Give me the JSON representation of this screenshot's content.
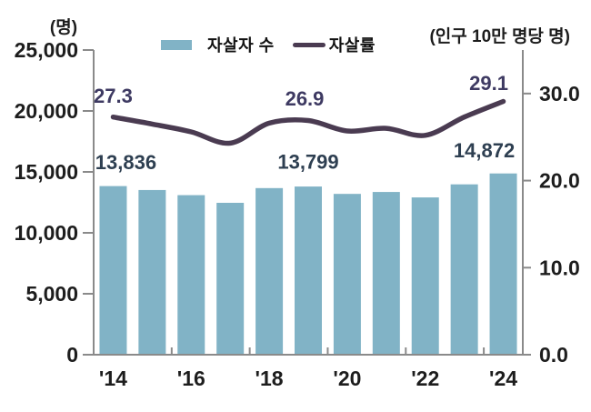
{
  "chart_data": {
    "type": "combo",
    "title": "",
    "categories": [
      "'14",
      "'15",
      "'16",
      "'17",
      "'18",
      "'19",
      "'20",
      "'21",
      "'22",
      "'23",
      "'24"
    ],
    "x_axis": {
      "tick_labels_shown": [
        "'14",
        "'16",
        "'18",
        "'20",
        "'22",
        "'24"
      ],
      "shown_at_indices": [
        0,
        2,
        4,
        6,
        8,
        10
      ]
    },
    "left_axis": {
      "unit": "(명)",
      "min": 0,
      "max": 25000,
      "tick_values": [
        0,
        5000,
        10000,
        15000,
        20000,
        25000
      ],
      "tick_labels": [
        "0",
        "5,000",
        "10,000",
        "15,000",
        "20,000",
        "25,000"
      ]
    },
    "right_axis": {
      "unit": "(인구 10만 명당 명)",
      "min": 0,
      "max": 35,
      "tick_values": [
        0,
        10,
        20,
        30
      ],
      "tick_labels": [
        "0.0",
        "10.0",
        "20.0",
        "30.0"
      ]
    },
    "series": [
      {
        "name": "자살자 수",
        "type": "bar",
        "axis": "left",
        "color": "#81B3C6",
        "label_color": "#2E3F51",
        "values": [
          13836,
          13513,
          13092,
          12463,
          13670,
          13799,
          13195,
          13352,
          12906,
          13978,
          14872
        ],
        "data_labels": [
          {
            "index": 0,
            "text": "13,836"
          },
          {
            "index": 5,
            "text": "13,799"
          },
          {
            "index": 10,
            "text": "14,872"
          }
        ]
      },
      {
        "name": "자살률",
        "type": "line",
        "axis": "right",
        "color": "#4A3B51",
        "label_color": "#3E3A62",
        "values": [
          27.3,
          26.5,
          25.6,
          24.3,
          26.6,
          26.9,
          25.7,
          26.0,
          25.2,
          27.3,
          29.1
        ],
        "data_labels": [
          {
            "index": 0,
            "text": "27.3"
          },
          {
            "index": 5,
            "text": "26.9"
          },
          {
            "index": 10,
            "text": "29.1"
          }
        ]
      }
    ],
    "grid": false,
    "legend_position": "top",
    "axis_color": "#8A8A8A",
    "tick_label_color": "#1d1d1d"
  }
}
